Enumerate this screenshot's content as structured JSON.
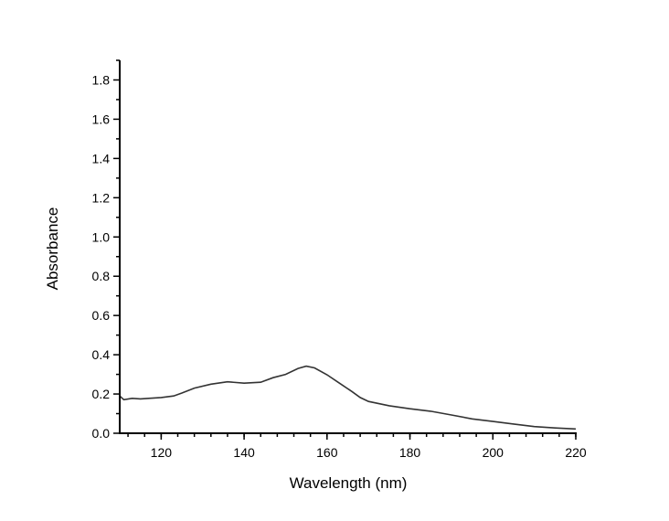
{
  "chart_data": {
    "type": "line",
    "title": "",
    "xlabel": "Wavelength (nm)",
    "ylabel": "Absorbance",
    "xlim": [
      110,
      220
    ],
    "ylim": [
      0,
      1.9
    ],
    "xticks": [
      120,
      140,
      160,
      180,
      200,
      220
    ],
    "xtick_labels": [
      "120",
      "140",
      "160",
      "180",
      "200",
      "220"
    ],
    "yticks": [
      0,
      0.2,
      0.4,
      0.6,
      0.8,
      1.0,
      1.2,
      1.4,
      1.6,
      1.8
    ],
    "ytick_labels": [
      "0.0",
      "0.2",
      "0.4",
      "0.6",
      "0.8",
      "1.0",
      "1.2",
      "1.4",
      "1.6",
      "1.8"
    ],
    "x_minor_step": 4,
    "y_minor_step": 0.1,
    "grid": false,
    "line_color": "#333333",
    "series": [
      {
        "name": "Absorbance",
        "x": [
          110,
          111,
          113,
          115,
          117,
          120,
          123,
          125,
          128,
          132,
          136,
          140,
          144,
          147,
          150,
          153,
          155,
          157,
          160,
          163,
          166,
          168,
          170,
          175,
          180,
          185,
          190,
          195,
          200,
          205,
          210,
          215,
          220
        ],
        "y": [
          0.19,
          0.171,
          0.178,
          0.175,
          0.178,
          0.182,
          0.19,
          0.205,
          0.23,
          0.25,
          0.262,
          0.255,
          0.26,
          0.283,
          0.3,
          0.33,
          0.342,
          0.333,
          0.298,
          0.255,
          0.213,
          0.182,
          0.162,
          0.14,
          0.125,
          0.112,
          0.093,
          0.073,
          0.06,
          0.047,
          0.034,
          0.027,
          0.022
        ]
      }
    ]
  }
}
